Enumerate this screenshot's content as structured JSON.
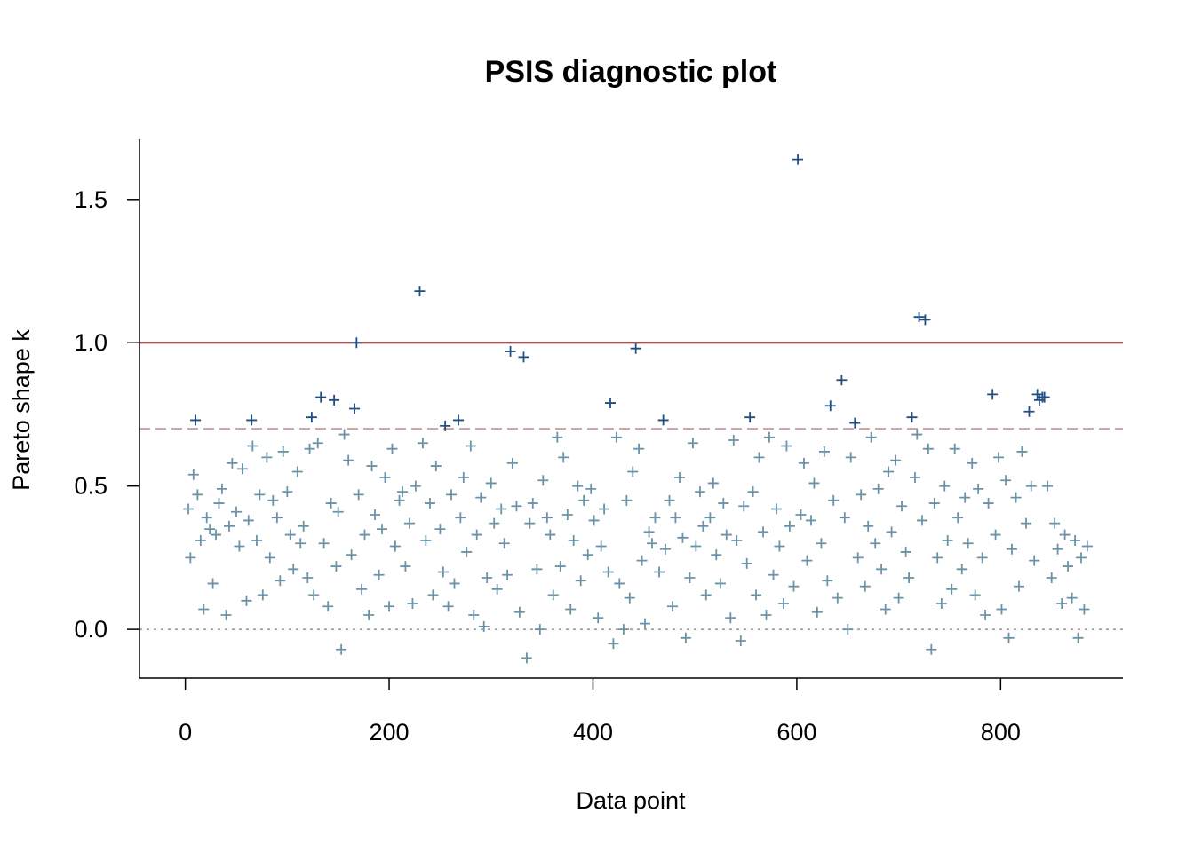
{
  "chart_data": {
    "type": "scatter",
    "title": "PSIS diagnostic plot",
    "xlabel": "Data point",
    "ylabel": "Pareto shape k",
    "xlim": [
      -45,
      920
    ],
    "ylim": [
      -0.17,
      1.71
    ],
    "x_ticks": [
      0,
      200,
      400,
      600,
      800
    ],
    "y_ticks": [
      0.0,
      0.5,
      1.0,
      1.5
    ],
    "x_tick_labels": [
      "0",
      "200",
      "400",
      "600",
      "800"
    ],
    "y_tick_labels": [
      "0.0",
      "0.5",
      "1.0",
      "1.5"
    ],
    "grid": false,
    "reference_lines": [
      {
        "y": 0.0,
        "style": "dotted",
        "color": "#aaaaaa"
      },
      {
        "y": 0.7,
        "style": "dashed",
        "color": "#c9a0a0"
      },
      {
        "y": 1.0,
        "style": "solid",
        "color": "#7f1f1f"
      }
    ],
    "colors": {
      "ok": "#6b93a8",
      "high": "#1f4e82"
    },
    "n_points": 885,
    "points_high": [
      [
        10,
        0.73
      ],
      [
        65,
        0.73
      ],
      [
        124,
        0.74
      ],
      [
        133,
        0.81
      ],
      [
        146,
        0.8
      ],
      [
        166,
        0.77
      ],
      [
        168,
        1.0
      ],
      [
        230,
        1.18
      ],
      [
        255,
        0.71
      ],
      [
        268,
        0.73
      ],
      [
        319,
        0.97
      ],
      [
        332,
        0.95
      ],
      [
        417,
        0.79
      ],
      [
        442,
        0.98
      ],
      [
        469,
        0.73
      ],
      [
        554,
        0.74
      ],
      [
        601,
        1.64
      ],
      [
        633,
        0.78
      ],
      [
        644,
        0.87
      ],
      [
        657,
        0.72
      ],
      [
        713,
        0.74
      ],
      [
        720,
        1.09
      ],
      [
        726,
        1.08
      ],
      [
        792,
        0.82
      ],
      [
        828,
        0.76
      ],
      [
        836,
        0.82
      ],
      [
        838,
        0.8
      ],
      [
        841,
        0.81
      ],
      [
        843,
        0.81
      ]
    ],
    "points_ok": [
      [
        3,
        0.42
      ],
      [
        5,
        0.25
      ],
      [
        8,
        0.54
      ],
      [
        12,
        0.47
      ],
      [
        15,
        0.31
      ],
      [
        18,
        0.07
      ],
      [
        21,
        0.39
      ],
      [
        24,
        0.35
      ],
      [
        27,
        0.16
      ],
      [
        30,
        0.33
      ],
      [
        33,
        0.44
      ],
      [
        36,
        0.49
      ],
      [
        40,
        0.05
      ],
      [
        43,
        0.36
      ],
      [
        46,
        0.58
      ],
      [
        50,
        0.41
      ],
      [
        53,
        0.29
      ],
      [
        56,
        0.56
      ],
      [
        60,
        0.1
      ],
      [
        62,
        0.38
      ],
      [
        66,
        0.64
      ],
      [
        70,
        0.31
      ],
      [
        73,
        0.47
      ],
      [
        76,
        0.12
      ],
      [
        80,
        0.6
      ],
      [
        83,
        0.25
      ],
      [
        86,
        0.45
      ],
      [
        90,
        0.39
      ],
      [
        93,
        0.17
      ],
      [
        96,
        0.62
      ],
      [
        100,
        0.48
      ],
      [
        103,
        0.33
      ],
      [
        106,
        0.21
      ],
      [
        110,
        0.55
      ],
      [
        113,
        0.3
      ],
      [
        116,
        0.36
      ],
      [
        120,
        0.18
      ],
      [
        122,
        0.63
      ],
      [
        126,
        0.12
      ],
      [
        130,
        0.65
      ],
      [
        136,
        0.3
      ],
      [
        140,
        0.08
      ],
      [
        143,
        0.44
      ],
      [
        148,
        0.22
      ],
      [
        150,
        0.41
      ],
      [
        153,
        -0.07
      ],
      [
        156,
        0.68
      ],
      [
        160,
        0.59
      ],
      [
        163,
        0.26
      ],
      [
        170,
        0.47
      ],
      [
        173,
        0.14
      ],
      [
        176,
        0.33
      ],
      [
        180,
        0.05
      ],
      [
        183,
        0.57
      ],
      [
        186,
        0.4
      ],
      [
        190,
        0.19
      ],
      [
        193,
        0.35
      ],
      [
        196,
        0.53
      ],
      [
        200,
        0.08
      ],
      [
        203,
        0.63
      ],
      [
        206,
        0.29
      ],
      [
        210,
        0.45
      ],
      [
        213,
        0.48
      ],
      [
        216,
        0.22
      ],
      [
        220,
        0.37
      ],
      [
        223,
        0.09
      ],
      [
        226,
        0.5
      ],
      [
        233,
        0.65
      ],
      [
        236,
        0.31
      ],
      [
        240,
        0.44
      ],
      [
        243,
        0.12
      ],
      [
        246,
        0.57
      ],
      [
        250,
        0.35
      ],
      [
        253,
        0.2
      ],
      [
        258,
        0.08
      ],
      [
        261,
        0.47
      ],
      [
        264,
        0.16
      ],
      [
        270,
        0.39
      ],
      [
        273,
        0.53
      ],
      [
        276,
        0.27
      ],
      [
        280,
        0.64
      ],
      [
        283,
        0.05
      ],
      [
        286,
        0.33
      ],
      [
        290,
        0.46
      ],
      [
        293,
        0.01
      ],
      [
        296,
        0.18
      ],
      [
        300,
        0.51
      ],
      [
        303,
        0.37
      ],
      [
        306,
        0.14
      ],
      [
        310,
        0.42
      ],
      [
        313,
        0.3
      ],
      [
        316,
        0.19
      ],
      [
        321,
        0.58
      ],
      [
        325,
        0.43
      ],
      [
        328,
        0.06
      ],
      [
        335,
        -0.1
      ],
      [
        338,
        0.37
      ],
      [
        341,
        0.44
      ],
      [
        345,
        0.21
      ],
      [
        348,
        0.0
      ],
      [
        351,
        0.52
      ],
      [
        355,
        0.39
      ],
      [
        358,
        0.33
      ],
      [
        361,
        0.12
      ],
      [
        365,
        0.67
      ],
      [
        368,
        0.22
      ],
      [
        371,
        0.6
      ],
      [
        375,
        0.4
      ],
      [
        378,
        0.07
      ],
      [
        381,
        0.31
      ],
      [
        385,
        0.5
      ],
      [
        388,
        0.17
      ],
      [
        391,
        0.45
      ],
      [
        395,
        0.26
      ],
      [
        398,
        0.49
      ],
      [
        401,
        0.38
      ],
      [
        405,
        0.04
      ],
      [
        408,
        0.29
      ],
      [
        411,
        0.42
      ],
      [
        415,
        0.2
      ],
      [
        420,
        -0.05
      ],
      [
        423,
        0.67
      ],
      [
        426,
        0.16
      ],
      [
        430,
        0.0
      ],
      [
        433,
        0.45
      ],
      [
        436,
        0.11
      ],
      [
        439,
        0.55
      ],
      [
        445,
        0.63
      ],
      [
        448,
        0.24
      ],
      [
        451,
        0.02
      ],
      [
        455,
        0.34
      ],
      [
        458,
        0.3
      ],
      [
        461,
        0.39
      ],
      [
        465,
        0.2
      ],
      [
        471,
        0.28
      ],
      [
        475,
        0.45
      ],
      [
        478,
        0.08
      ],
      [
        481,
        0.39
      ],
      [
        485,
        0.53
      ],
      [
        488,
        0.32
      ],
      [
        491,
        -0.03
      ],
      [
        495,
        0.18
      ],
      [
        498,
        0.65
      ],
      [
        501,
        0.29
      ],
      [
        505,
        0.48
      ],
      [
        508,
        0.36
      ],
      [
        511,
        0.12
      ],
      [
        515,
        0.39
      ],
      [
        518,
        0.51
      ],
      [
        521,
        0.26
      ],
      [
        525,
        0.16
      ],
      [
        528,
        0.44
      ],
      [
        531,
        0.33
      ],
      [
        535,
        0.04
      ],
      [
        538,
        0.66
      ],
      [
        541,
        0.31
      ],
      [
        545,
        -0.04
      ],
      [
        548,
        0.43
      ],
      [
        551,
        0.23
      ],
      [
        557,
        0.48
      ],
      [
        560,
        0.12
      ],
      [
        563,
        0.6
      ],
      [
        567,
        0.34
      ],
      [
        570,
        0.05
      ],
      [
        573,
        0.67
      ],
      [
        577,
        0.19
      ],
      [
        580,
        0.42
      ],
      [
        583,
        0.29
      ],
      [
        587,
        0.09
      ],
      [
        590,
        0.64
      ],
      [
        593,
        0.36
      ],
      [
        597,
        0.15
      ],
      [
        604,
        0.4
      ],
      [
        607,
        0.58
      ],
      [
        610,
        0.24
      ],
      [
        614,
        0.38
      ],
      [
        617,
        0.51
      ],
      [
        620,
        0.06
      ],
      [
        624,
        0.3
      ],
      [
        627,
        0.62
      ],
      [
        630,
        0.17
      ],
      [
        636,
        0.45
      ],
      [
        640,
        0.11
      ],
      [
        647,
        0.39
      ],
      [
        650,
        0.0
      ],
      [
        653,
        0.6
      ],
      [
        660,
        0.25
      ],
      [
        663,
        0.47
      ],
      [
        667,
        0.15
      ],
      [
        670,
        0.36
      ],
      [
        673,
        0.67
      ],
      [
        677,
        0.3
      ],
      [
        680,
        0.49
      ],
      [
        683,
        0.21
      ],
      [
        687,
        0.07
      ],
      [
        690,
        0.55
      ],
      [
        693,
        0.34
      ],
      [
        697,
        0.59
      ],
      [
        700,
        0.11
      ],
      [
        703,
        0.43
      ],
      [
        707,
        0.27
      ],
      [
        710,
        0.18
      ],
      [
        716,
        0.53
      ],
      [
        718,
        0.68
      ],
      [
        723,
        0.38
      ],
      [
        729,
        0.63
      ],
      [
        732,
        -0.07
      ],
      [
        735,
        0.44
      ],
      [
        738,
        0.25
      ],
      [
        742,
        0.09
      ],
      [
        745,
        0.5
      ],
      [
        748,
        0.31
      ],
      [
        752,
        0.14
      ],
      [
        755,
        0.63
      ],
      [
        758,
        0.39
      ],
      [
        762,
        0.21
      ],
      [
        765,
        0.46
      ],
      [
        768,
        0.3
      ],
      [
        772,
        0.58
      ],
      [
        775,
        0.12
      ],
      [
        778,
        0.49
      ],
      [
        782,
        0.25
      ],
      [
        785,
        0.05
      ],
      [
        788,
        0.44
      ],
      [
        795,
        0.33
      ],
      [
        798,
        0.6
      ],
      [
        801,
        0.07
      ],
      [
        805,
        0.52
      ],
      [
        808,
        -0.03
      ],
      [
        811,
        0.28
      ],
      [
        815,
        0.46
      ],
      [
        818,
        0.15
      ],
      [
        821,
        0.62
      ],
      [
        825,
        0.37
      ],
      [
        830,
        0.5
      ],
      [
        833,
        0.24
      ],
      [
        846,
        0.5
      ],
      [
        850,
        0.18
      ],
      [
        853,
        0.37
      ],
      [
        856,
        0.28
      ],
      [
        860,
        0.09
      ],
      [
        863,
        0.33
      ],
      [
        866,
        0.22
      ],
      [
        870,
        0.11
      ],
      [
        873,
        0.31
      ],
      [
        876,
        -0.03
      ],
      [
        879,
        0.25
      ],
      [
        882,
        0.07
      ],
      [
        885,
        0.29
      ]
    ]
  }
}
